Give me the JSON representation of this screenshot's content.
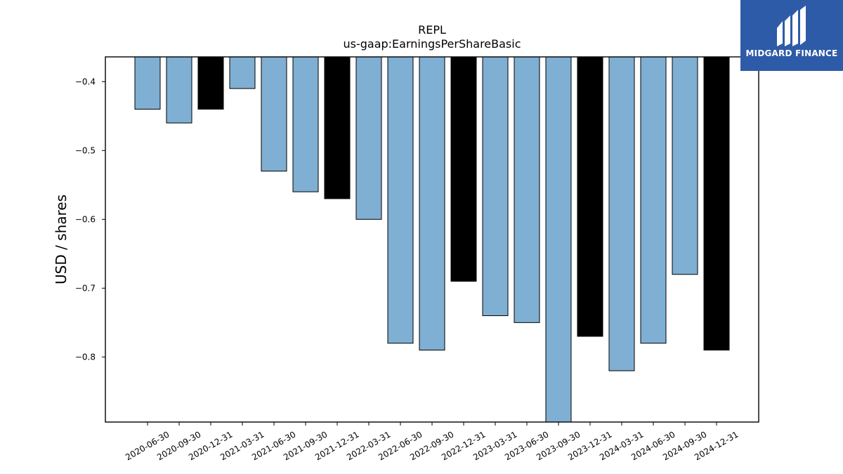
{
  "logo": {
    "text": "MIDGARD FINANCE",
    "background": "#2e5ba8",
    "icon": "midgard-logo-icon"
  },
  "chart_data": {
    "type": "bar",
    "title": "REPL",
    "subtitle": "us-gaap:EarningsPerShareBasic",
    "xlabel": "",
    "ylabel": "USD / shares",
    "categories": [
      "2020-06-30",
      "2020-09-30",
      "2020-12-31",
      "2021-03-31",
      "2021-06-30",
      "2021-09-30",
      "2021-12-31",
      "2022-03-31",
      "2022-06-30",
      "2022-09-30",
      "2022-12-31",
      "2023-03-31",
      "2023-06-30",
      "2023-09-30",
      "2023-12-31",
      "2024-03-31",
      "2024-06-30",
      "2024-09-30",
      "2024-12-31"
    ],
    "values": [
      -0.44,
      -0.46,
      -0.44,
      -0.41,
      -0.53,
      -0.56,
      -0.57,
      -0.6,
      -0.78,
      -0.79,
      -0.69,
      -0.74,
      -0.75,
      -0.9,
      -0.77,
      -0.82,
      -0.78,
      -0.68,
      -0.79
    ],
    "highlight": [
      false,
      false,
      true,
      false,
      false,
      false,
      true,
      false,
      false,
      false,
      true,
      false,
      false,
      false,
      true,
      false,
      false,
      false,
      true
    ],
    "colors": {
      "bar": "#7fafd3",
      "highlight": "#000000",
      "edge": "#000000"
    },
    "ylim": [
      -0.8945,
      -0.364
    ],
    "yticks": [
      -0.4,
      -0.5,
      -0.6,
      -0.7,
      -0.8
    ],
    "ytick_labels": [
      "−0.4",
      "−0.5",
      "−0.6",
      "−0.7",
      "−0.8"
    ],
    "grid": false,
    "legend": "none"
  }
}
